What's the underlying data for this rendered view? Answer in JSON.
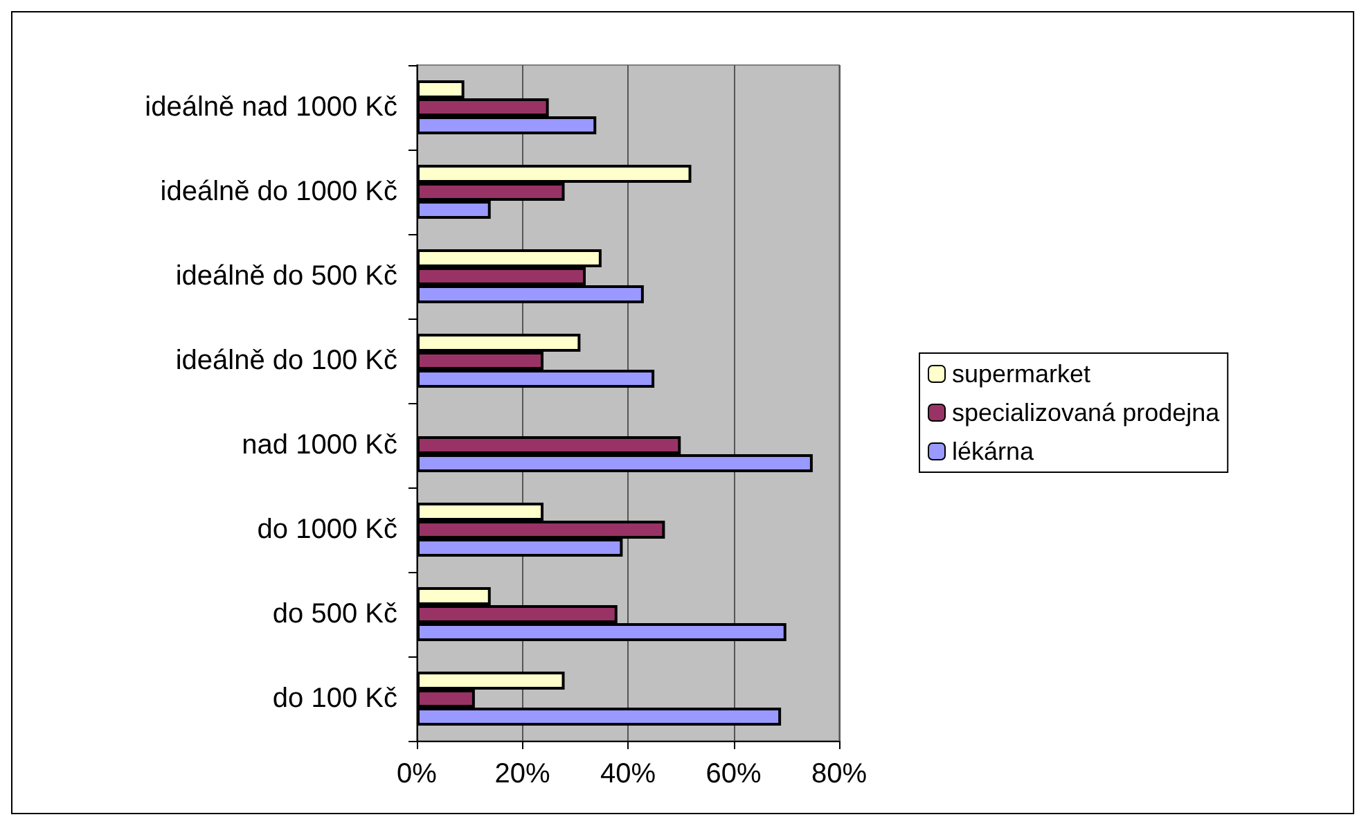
{
  "chart_data": {
    "type": "bar",
    "orientation": "horizontal",
    "categories": [
      "ideálně nad 1000 Kč",
      "ideálně do 1000 Kč",
      "ideálně do 500 Kč",
      "ideálně do 100 Kč",
      "nad 1000 Kč",
      "do 1000 Kč",
      "do 500 Kč",
      "do 100 Kč"
    ],
    "series": [
      {
        "name": "supermarket",
        "color": "#ffffcc",
        "values": [
          9,
          52,
          35,
          31,
          null,
          24,
          14,
          28
        ]
      },
      {
        "name": "specializovaná prodejna",
        "color": "#993366",
        "values": [
          25,
          28,
          32,
          24,
          50,
          47,
          38,
          11
        ]
      },
      {
        "name": "lékárna",
        "color": "#9999ff",
        "values": [
          34,
          14,
          43,
          45,
          75,
          39,
          70,
          69
        ]
      }
    ],
    "xlim": [
      0,
      80
    ],
    "xticks": [
      {
        "value": 0,
        "label": "0%"
      },
      {
        "value": 20,
        "label": "20%"
      },
      {
        "value": 40,
        "label": "40%"
      },
      {
        "value": 60,
        "label": "60%"
      },
      {
        "value": 80,
        "label": "80%"
      }
    ],
    "grid": "x",
    "legend": "right"
  }
}
